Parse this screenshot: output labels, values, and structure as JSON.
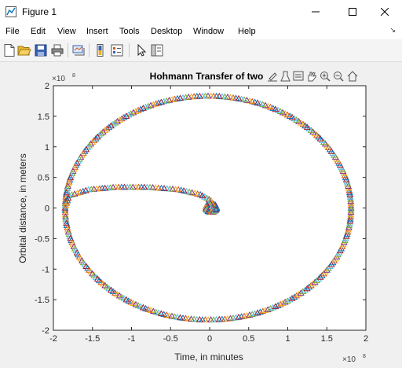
{
  "window": {
    "title": "Figure 1",
    "controls": {
      "minimize": "minimize",
      "maximize": "maximize",
      "close": "close"
    }
  },
  "menu": [
    "File",
    "Edit",
    "View",
    "Insert",
    "Tools",
    "Desktop",
    "Window",
    "Help"
  ],
  "toolbar": [
    "new-figure-icon",
    "open-file-icon",
    "save-icon",
    "print-icon",
    "link-icon",
    "insert-colorbar-icon",
    "insert-legend-icon",
    "pointer-icon",
    "property-inspector-icon"
  ],
  "axes_toolbar": [
    "export-icon",
    "brush-icon",
    "data-tips-icon",
    "pan-icon",
    "zoom-in-icon",
    "zoom-out-icon",
    "home-icon"
  ],
  "chart_data": {
    "type": "scatter",
    "title": "Hohmann Transfer of two c",
    "xlabel": "Time, in minutes",
    "ylabel": "Orbital distance, in meters",
    "xlim": [
      -2,
      2
    ],
    "ylim": [
      -2,
      2
    ],
    "x_exponent": "×10",
    "x_exponent_power": "8",
    "y_exponent": "×10",
    "y_exponent_power": "8",
    "xticks": [
      "-2",
      "-1.5",
      "-1",
      "-0.5",
      "0",
      "0.5",
      "1",
      "1.5",
      "2"
    ],
    "yticks": [
      "-2",
      "-1.5",
      "-1",
      "-0.5",
      "0",
      "0.5",
      "1",
      "1.5",
      "2"
    ],
    "grid": false,
    "marker": "triangle",
    "series": [
      {
        "description": "circular orbit",
        "radius": 1.83,
        "center": [
          -0.02,
          0.0
        ]
      },
      {
        "description": "transfer spiral",
        "points": [
          [
            0.05,
            0.02
          ],
          [
            0.02,
            0.12
          ],
          [
            -0.12,
            0.22
          ],
          [
            -0.4,
            0.3
          ],
          [
            -0.8,
            0.34
          ],
          [
            -1.2,
            0.34
          ],
          [
            -1.55,
            0.3
          ],
          [
            -1.8,
            0.2
          ],
          [
            -1.85,
            0.0
          ]
        ]
      }
    ],
    "colors": [
      "#0072bd",
      "#d95319",
      "#edb120",
      "#7e2f8e",
      "#77ac30",
      "#4dbeee",
      "#a2142f"
    ]
  }
}
